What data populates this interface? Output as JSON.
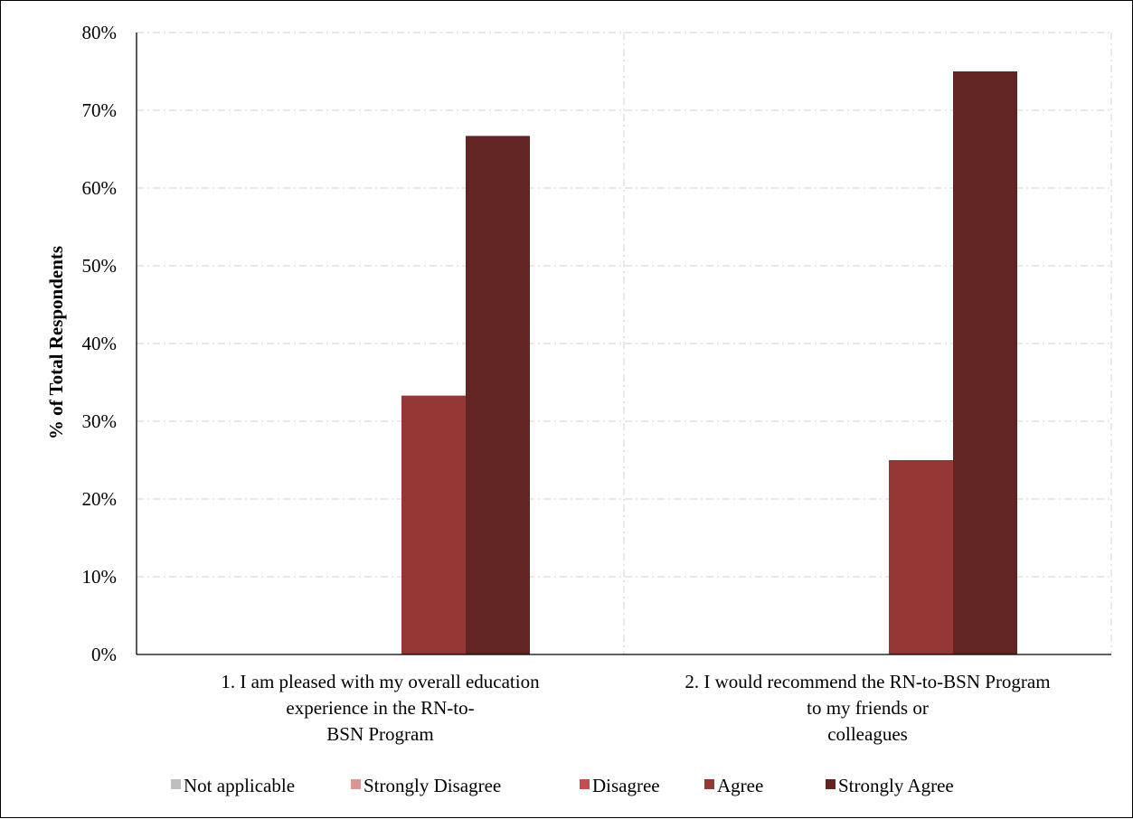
{
  "chart_data": {
    "type": "bar",
    "ylabel": "% of Total Respondents",
    "xlabel": "",
    "ylim": [
      0,
      80
    ],
    "y_ticks": [
      "0%",
      "10%",
      "20%",
      "30%",
      "40%",
      "50%",
      "60%",
      "70%",
      "80%"
    ],
    "y_tick_values": [
      0,
      10,
      20,
      30,
      40,
      50,
      60,
      70,
      80
    ],
    "grid": true,
    "legend_position": "bottom",
    "categories": [
      [
        "1. I am pleased with my overall education",
        "experience in the RN-to-",
        "BSN Program"
      ],
      [
        "2. I would recommend the RN-to-BSN Program",
        "to my friends or",
        "colleagues"
      ]
    ],
    "series": [
      {
        "name": "Not applicable",
        "color": "#bfbfbf",
        "values": [
          0,
          0
        ]
      },
      {
        "name": "Strongly Disagree",
        "color": "#d99694",
        "values": [
          0,
          0
        ]
      },
      {
        "name": "Disagree",
        "color": "#c0504d",
        "values": [
          0,
          0
        ]
      },
      {
        "name": "Agree",
        "color": "#953735",
        "values": [
          33.3,
          25.0
        ]
      },
      {
        "name": "Strongly Agree",
        "color": "#632523",
        "values": [
          66.7,
          75.0
        ]
      }
    ]
  }
}
